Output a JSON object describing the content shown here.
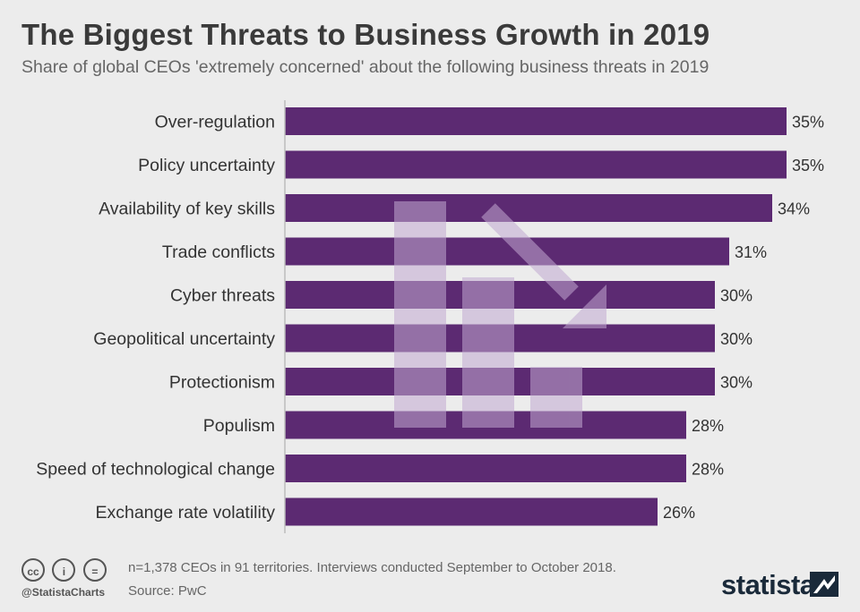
{
  "header": {
    "title": "The Biggest Threats to Business Growth in 2019",
    "subtitle": "Share of global CEOs 'extremely concerned' about the following business threats in 2019"
  },
  "chart_data": {
    "type": "bar",
    "orientation": "horizontal",
    "categories": [
      "Over-regulation",
      "Policy uncertainty",
      "Availability of key skills",
      "Trade conflicts",
      "Cyber threats",
      "Geopolitical uncertainty",
      "Protectionism",
      "Populism",
      "Speed of technological change",
      "Exchange rate volatility"
    ],
    "values": [
      35,
      35,
      34,
      31,
      30,
      30,
      30,
      28,
      28,
      26
    ],
    "value_suffix": "%",
    "xlim": [
      0,
      35
    ],
    "bar_color": "#5c2a72",
    "decoration_color": "#b39bc4",
    "decoration_icon": "down-trend-arrow-icon"
  },
  "footer": {
    "license_icons": [
      "cc-icon",
      "by-icon",
      "nd-icon"
    ],
    "license_glyphs": [
      "cc",
      "i",
      "="
    ],
    "handle": "@StatistaCharts",
    "note": "n=1,378 CEOs in 91 territories. Interviews conducted September to October 2018.",
    "source": "Source: PwC",
    "brand": "statista",
    "brand_icon": "statista-logo-icon"
  }
}
